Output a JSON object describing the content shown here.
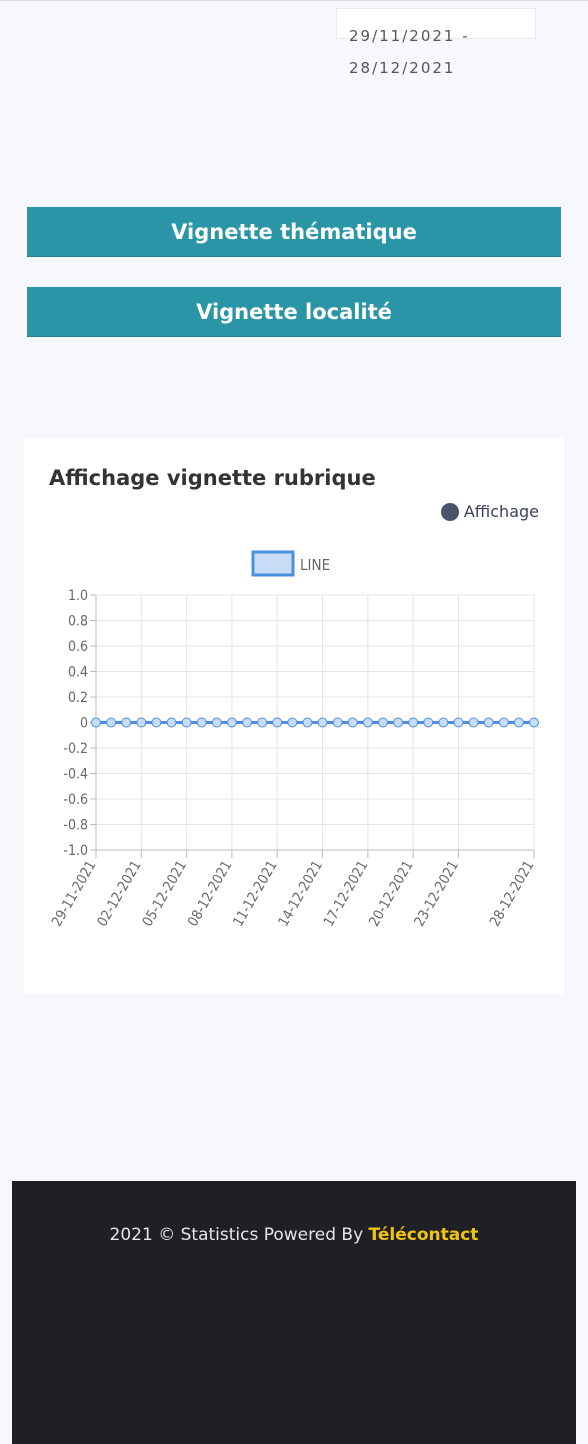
{
  "date_range": {
    "start": "29/11/2021 -",
    "end": "28/12/2021"
  },
  "buttons": {
    "thematique": "Vignette thématique",
    "localite": "Vignette localité"
  },
  "card": {
    "title": "Affichage vignette rubrique",
    "legend_label": "Affichage"
  },
  "colors": {
    "accent": "#2b95a8",
    "line": "#4a90e2",
    "footer_bg": "#1f2024",
    "brand": "#f0c40e"
  },
  "chart_data": {
    "type": "line",
    "legend": "LINE",
    "x": [
      "29-11-2021",
      "30-11-2021",
      "01-12-2021",
      "02-12-2021",
      "03-12-2021",
      "04-12-2021",
      "05-12-2021",
      "06-12-2021",
      "07-12-2021",
      "08-12-2021",
      "09-12-2021",
      "10-12-2021",
      "11-12-2021",
      "12-12-2021",
      "13-12-2021",
      "14-12-2021",
      "15-12-2021",
      "16-12-2021",
      "17-12-2021",
      "18-12-2021",
      "19-12-2021",
      "20-12-2021",
      "21-12-2021",
      "22-12-2021",
      "23-12-2021",
      "24-12-2021",
      "25-12-2021",
      "26-12-2021",
      "27-12-2021",
      "28-12-2021"
    ],
    "x_tick_labels": [
      "29-11-2021",
      "02-12-2021",
      "05-12-2021",
      "08-12-2021",
      "11-12-2021",
      "14-12-2021",
      "17-12-2021",
      "20-12-2021",
      "23-12-2021",
      "28-12-2021"
    ],
    "y_ticks": [
      "1.0",
      "0.8",
      "0.6",
      "0.4",
      "0.2",
      "0",
      "-0.2",
      "-0.4",
      "-0.6",
      "-0.8",
      "-1.0"
    ],
    "series": [
      {
        "name": "LINE",
        "values": [
          0,
          0,
          0,
          0,
          0,
          0,
          0,
          0,
          0,
          0,
          0,
          0,
          0,
          0,
          0,
          0,
          0,
          0,
          0,
          0,
          0,
          0,
          0,
          0,
          0,
          0,
          0,
          0,
          0,
          0
        ]
      }
    ],
    "ylim": [
      -1,
      1
    ],
    "grid": true
  },
  "footer": {
    "prefix": "2021 © Statistics Powered By ",
    "brand": "Télécontact"
  }
}
